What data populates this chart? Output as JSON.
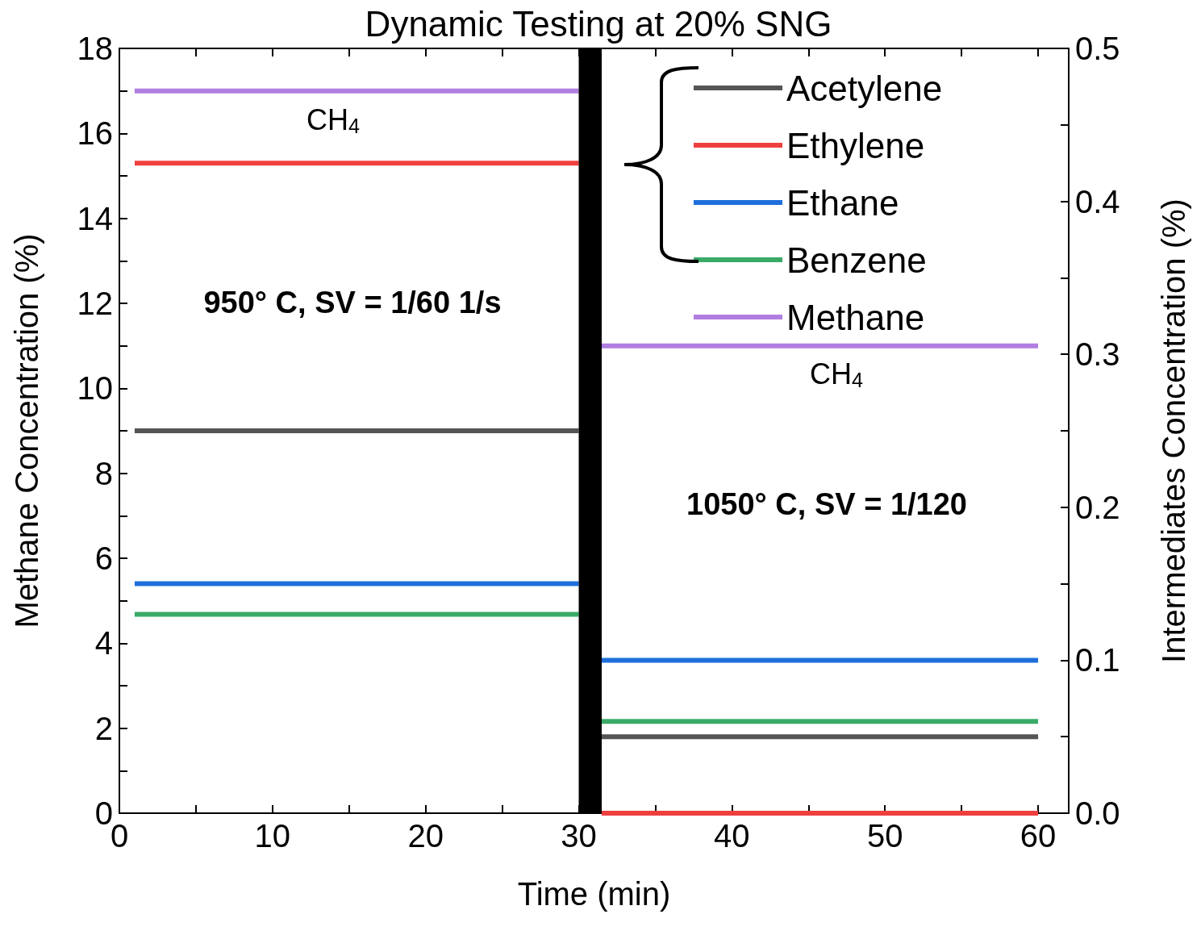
{
  "chart_data": {
    "type": "line",
    "title": "Dynamic Testing at 20% SNG",
    "xlabel": "Time (min)",
    "ylabel": "Methane Concentration (%)",
    "y2label": "Intermediates Concentration (%)",
    "xlim": [
      0,
      62
    ],
    "xticks": [
      0,
      {
        "value": 5,
        "label": null
      },
      10,
      {
        "value": 15,
        "label": null
      },
      20,
      {
        "value": 25,
        "label": null
      },
      30,
      {
        "value": 35,
        "label": null
      },
      40,
      {
        "value": 45,
        "label": null
      },
      50,
      {
        "value": 55,
        "label": null
      },
      60
    ],
    "ylim": [
      0,
      18
    ],
    "yticks": [
      0,
      {
        "value": 1,
        "label": null
      },
      2,
      {
        "value": 3,
        "label": null
      },
      4,
      {
        "value": 5,
        "label": null
      },
      6,
      {
        "value": 7,
        "label": null
      },
      8,
      {
        "value": 9,
        "label": null
      },
      10,
      {
        "value": 11,
        "label": null
      },
      12,
      {
        "value": 13,
        "label": null
      },
      14,
      {
        "value": 15,
        "label": null
      },
      16,
      {
        "value": 17,
        "label": null
      },
      18
    ],
    "y2lim": [
      0,
      0.5
    ],
    "y2ticks": [
      {
        "value": 0,
        "label": "0.0"
      },
      {
        "value": 0.05,
        "label": null
      },
      0.1,
      {
        "value": 0.15,
        "label": null
      },
      0.2,
      {
        "value": 0.25,
        "label": null
      },
      0.3,
      {
        "value": 0.35,
        "label": null
      },
      0.4,
      {
        "value": 0.45,
        "label": null
      },
      0.5
    ],
    "series": [
      {
        "name": "Acetylene",
        "color": "#555555",
        "axis": "y2",
        "x": [
          1,
          30,
          30.75,
          31.5,
          60
        ],
        "values": [
          0.25,
          0.25,
          null,
          0.05,
          0.05
        ]
      },
      {
        "name": "Ethylene",
        "color": "#ef4040",
        "axis": "y2",
        "x": [
          1,
          30,
          30.75,
          31.5,
          60
        ],
        "values": [
          0.425,
          0.425,
          null,
          0,
          0
        ]
      },
      {
        "name": "Ethane",
        "color": "#1f6fdc",
        "axis": "y2",
        "x": [
          1,
          30,
          30.75,
          31.5,
          60
        ],
        "values": [
          0.15,
          0.15,
          null,
          0.1,
          0.1
        ]
      },
      {
        "name": "Benzene",
        "color": "#3aaa66",
        "axis": "y2",
        "x": [
          1,
          30,
          30.75,
          31.5,
          60
        ],
        "values": [
          0.13,
          0.13,
          null,
          0.06,
          0.06
        ]
      },
      {
        "name": "Methane",
        "color": "#b07ee0",
        "axis": "y",
        "x": [
          1,
          30,
          30.75,
          31.5,
          60
        ],
        "values": [
          17,
          17,
          null,
          11,
          11
        ]
      }
    ],
    "bands": [
      {
        "axis": "x",
        "from": 30,
        "to": 31.5,
        "color": "#000000"
      }
    ],
    "annotations": [
      "CH$_{4}$",
      "CH$_{4}$",
      "950° C, SV = 1/60 1/s",
      "1050° C, SV = 1/120"
    ],
    "legend": "top right",
    "grid": false,
    "marker": "none",
    "line_style": "solid"
  }
}
